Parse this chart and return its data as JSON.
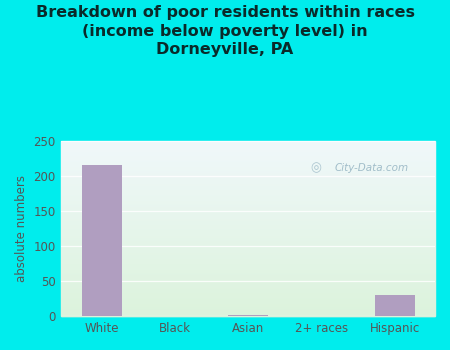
{
  "categories": [
    "White",
    "Black",
    "Asian",
    "2+ races",
    "Hispanic"
  ],
  "values": [
    216,
    0,
    2,
    1,
    30
  ],
  "bar_color": "#b09ec0",
  "title_line1": "Breakdown of poor residents within races",
  "title_line2": "(income below poverty level) in",
  "title_line3": "Dorneyville, PA",
  "ylabel": "absolute numbers",
  "ylim": [
    0,
    250
  ],
  "yticks": [
    0,
    50,
    100,
    150,
    200,
    250
  ],
  "background_outer": "#00eded",
  "grid_color": "#ddeedc",
  "watermark": "City-Data.com",
  "title_color": "#0a2a2a",
  "axis_label_color": "#555555",
  "tick_label_color": "#555555",
  "title_fontsize": 11.5
}
